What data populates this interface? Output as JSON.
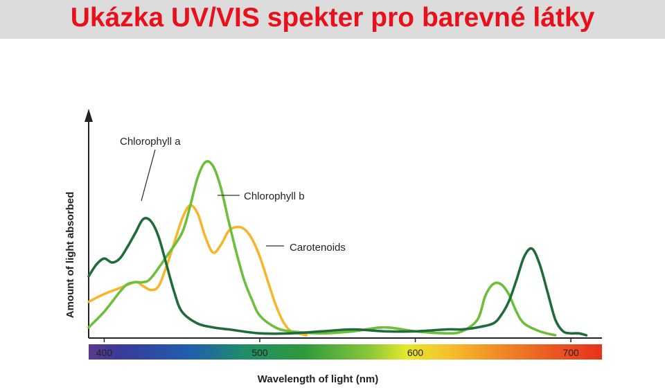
{
  "header": {
    "title": "Ukázka UV/VIS spekter pro barevné látky"
  },
  "colors": {
    "title": "#e8111b",
    "title_bar": "#dcdcdc",
    "chlorophyll_a": "#1f6b3a",
    "chlorophyll_b": "#6cbf3a",
    "carotenoids": "#f5b52c"
  },
  "chart_data": {
    "type": "line",
    "title": "",
    "xlabel": "Wavelength of light (nm)",
    "ylabel": "Amount of light absorbed",
    "xlim": [
      390,
      720
    ],
    "ylim": [
      0,
      1
    ],
    "x_ticks": [
      400,
      500,
      600,
      700
    ],
    "y_ticks": [],
    "grid": false,
    "color_bar": "visible spectrum from violet (400 nm) to red (700 nm)",
    "series": [
      {
        "name": "Chlorophyll a",
        "label": "Chlorophyll a",
        "color": "#1f6b3a",
        "x": [
          390,
          395,
          400,
          405,
          410,
          415,
          420,
          425,
          430,
          435,
          440,
          445,
          450,
          460,
          470,
          480,
          500,
          520,
          540,
          560,
          580,
          600,
          620,
          630,
          640,
          650,
          655,
          660,
          665,
          670,
          675,
          680,
          685,
          690,
          695,
          700,
          705,
          710
        ],
        "y": [
          0.3,
          0.36,
          0.39,
          0.37,
          0.39,
          0.45,
          0.52,
          0.59,
          0.58,
          0.5,
          0.36,
          0.22,
          0.12,
          0.06,
          0.04,
          0.03,
          0.01,
          0.01,
          0.02,
          0.03,
          0.02,
          0.02,
          0.03,
          0.03,
          0.04,
          0.06,
          0.1,
          0.17,
          0.28,
          0.4,
          0.44,
          0.36,
          0.22,
          0.08,
          0.02,
          0.01,
          0.01,
          0.0
        ]
      },
      {
        "name": "Chlorophyll b",
        "label": "Chlorophyll b",
        "color": "#6cbf3a",
        "x": [
          390,
          400,
          410,
          415,
          420,
          425,
          430,
          440,
          450,
          455,
          460,
          465,
          470,
          475,
          480,
          485,
          490,
          495,
          500,
          510,
          520,
          540,
          560,
          580,
          600,
          620,
          630,
          640,
          645,
          650,
          655,
          660,
          665,
          670,
          680,
          690
        ],
        "y": [
          0.04,
          0.12,
          0.22,
          0.26,
          0.27,
          0.27,
          0.29,
          0.4,
          0.52,
          0.65,
          0.8,
          0.88,
          0.86,
          0.75,
          0.58,
          0.42,
          0.28,
          0.18,
          0.1,
          0.04,
          0.02,
          0.01,
          0.02,
          0.04,
          0.02,
          0.01,
          0.02,
          0.08,
          0.2,
          0.26,
          0.26,
          0.21,
          0.12,
          0.06,
          0.02,
          0.0
        ]
      },
      {
        "name": "Carotenoids",
        "label": "Carotenoids",
        "color": "#f5b52c",
        "x": [
          390,
          400,
          410,
          420,
          425,
          430,
          435,
          440,
          445,
          450,
          455,
          460,
          465,
          470,
          475,
          480,
          485,
          490,
          495,
          500,
          505,
          510,
          515,
          520,
          525,
          530
        ],
        "y": [
          0.17,
          0.21,
          0.24,
          0.27,
          0.25,
          0.23,
          0.25,
          0.35,
          0.47,
          0.59,
          0.66,
          0.62,
          0.5,
          0.42,
          0.46,
          0.53,
          0.55,
          0.54,
          0.49,
          0.4,
          0.28,
          0.16,
          0.07,
          0.02,
          0.01,
          0.0
        ]
      }
    ]
  }
}
